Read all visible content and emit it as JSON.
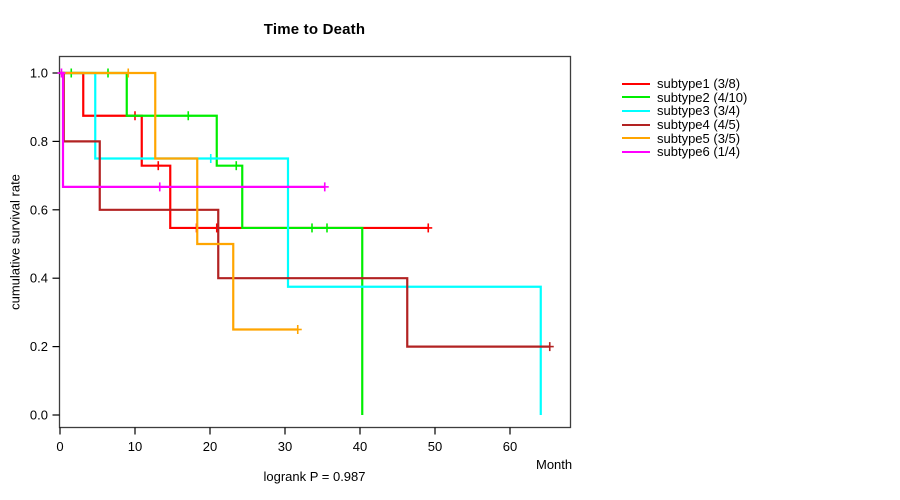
{
  "title": "Time to Death",
  "chart_data": {
    "type": "line",
    "variant": "kaplan-meier-step",
    "title": "Time to Death",
    "xlabel": "Month",
    "ylabel": "cumulative survival rate",
    "annotation": "logrank P = 0.987",
    "xlim": [
      0,
      68
    ],
    "ylim": [
      0,
      1
    ],
    "x_ticks": [
      0,
      10,
      20,
      30,
      40,
      50,
      60
    ],
    "y_ticks": [
      0.0,
      0.2,
      0.4,
      0.6,
      0.8,
      1.0
    ],
    "grid": false,
    "legend_position": "right-outside",
    "series": [
      {
        "name": "subtype1",
        "label": "subtype1 (3/8)",
        "color": "#FF0000",
        "steps": [
          [
            3.1,
            0.875
          ],
          [
            10.9,
            0.729
          ],
          [
            14.7,
            0.547
          ]
        ],
        "censors": [
          [
            10.0,
            0.875
          ],
          [
            13.1,
            0.729
          ],
          [
            18.2,
            0.547
          ],
          [
            20.9,
            0.547
          ],
          [
            49.1,
            0.547
          ]
        ],
        "end_month": 49.1
      },
      {
        "name": "subtype2",
        "label": "subtype2 (4/10)",
        "color": "#00EE00",
        "steps": [
          [
            8.9,
            0.875
          ],
          [
            20.9,
            0.729
          ],
          [
            24.3,
            0.547
          ],
          [
            40.3,
            0.0
          ]
        ],
        "censors": [
          [
            1.5,
            1.0
          ],
          [
            6.4,
            1.0
          ],
          [
            17.1,
            0.875
          ],
          [
            23.5,
            0.729
          ],
          [
            33.6,
            0.547
          ],
          [
            35.6,
            0.547
          ]
        ],
        "end_month": 40.3
      },
      {
        "name": "subtype3",
        "label": "subtype3 (3/4)",
        "color": "#00FFFF",
        "steps": [
          [
            4.7,
            0.75
          ],
          [
            30.4,
            0.375
          ],
          [
            64.1,
            0.0
          ]
        ],
        "censors": [
          [
            20.1,
            0.75
          ]
        ],
        "end_month": 64.1
      },
      {
        "name": "subtype4",
        "label": "subtype4 (4/5)",
        "color": "#B22222",
        "steps": [
          [
            0.5,
            0.8
          ],
          [
            5.3,
            0.6
          ],
          [
            21.1,
            0.4
          ],
          [
            46.3,
            0.2
          ]
        ],
        "censors": [
          [
            65.3,
            0.2
          ]
        ],
        "end_month": 65.3
      },
      {
        "name": "subtype5",
        "label": "subtype5 (3/5)",
        "color": "#FFA500",
        "steps": [
          [
            12.7,
            0.75
          ],
          [
            18.3,
            0.5
          ],
          [
            23.1,
            0.25
          ]
        ],
        "censors": [
          [
            9.1,
            1.0
          ],
          [
            31.7,
            0.25
          ]
        ],
        "end_month": 31.7
      },
      {
        "name": "subtype6",
        "label": "subtype6 (1/4)",
        "color": "#FF00FF",
        "steps": [
          [
            0.4,
            0.667
          ]
        ],
        "censors": [
          [
            0.2,
            1.0
          ],
          [
            13.3,
            0.667
          ],
          [
            35.3,
            0.667
          ]
        ],
        "end_month": 35.3
      }
    ]
  }
}
